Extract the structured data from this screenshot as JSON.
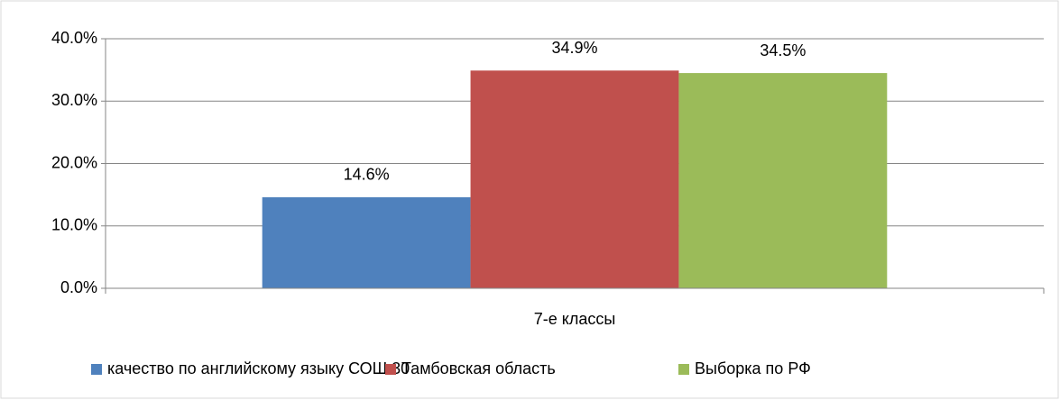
{
  "chart_data": {
    "type": "bar",
    "categories": [
      "7-е классы"
    ],
    "series": [
      {
        "name": "качество по английскому языку СОШ 30",
        "color": "#4f81bd",
        "values": [
          14.6
        ],
        "value_labels": [
          "14.6%"
        ]
      },
      {
        "name": "Тамбовская область",
        "color": "#c0504d",
        "values": [
          34.9
        ],
        "value_labels": [
          "34.9%"
        ]
      },
      {
        "name": "Выборка по РФ",
        "color": "#9bbb59",
        "values": [
          34.5
        ],
        "value_labels": [
          "34.5%"
        ]
      }
    ],
    "ylim": [
      0,
      40
    ],
    "yticks": [
      {
        "value": 0,
        "label": "0.0%"
      },
      {
        "value": 10,
        "label": "10.0%"
      },
      {
        "value": 20,
        "label": "20.0%"
      },
      {
        "value": 30,
        "label": "30.0%"
      },
      {
        "value": 40,
        "label": "40.0%"
      }
    ],
    "grid": true,
    "legend": "bottom"
  }
}
